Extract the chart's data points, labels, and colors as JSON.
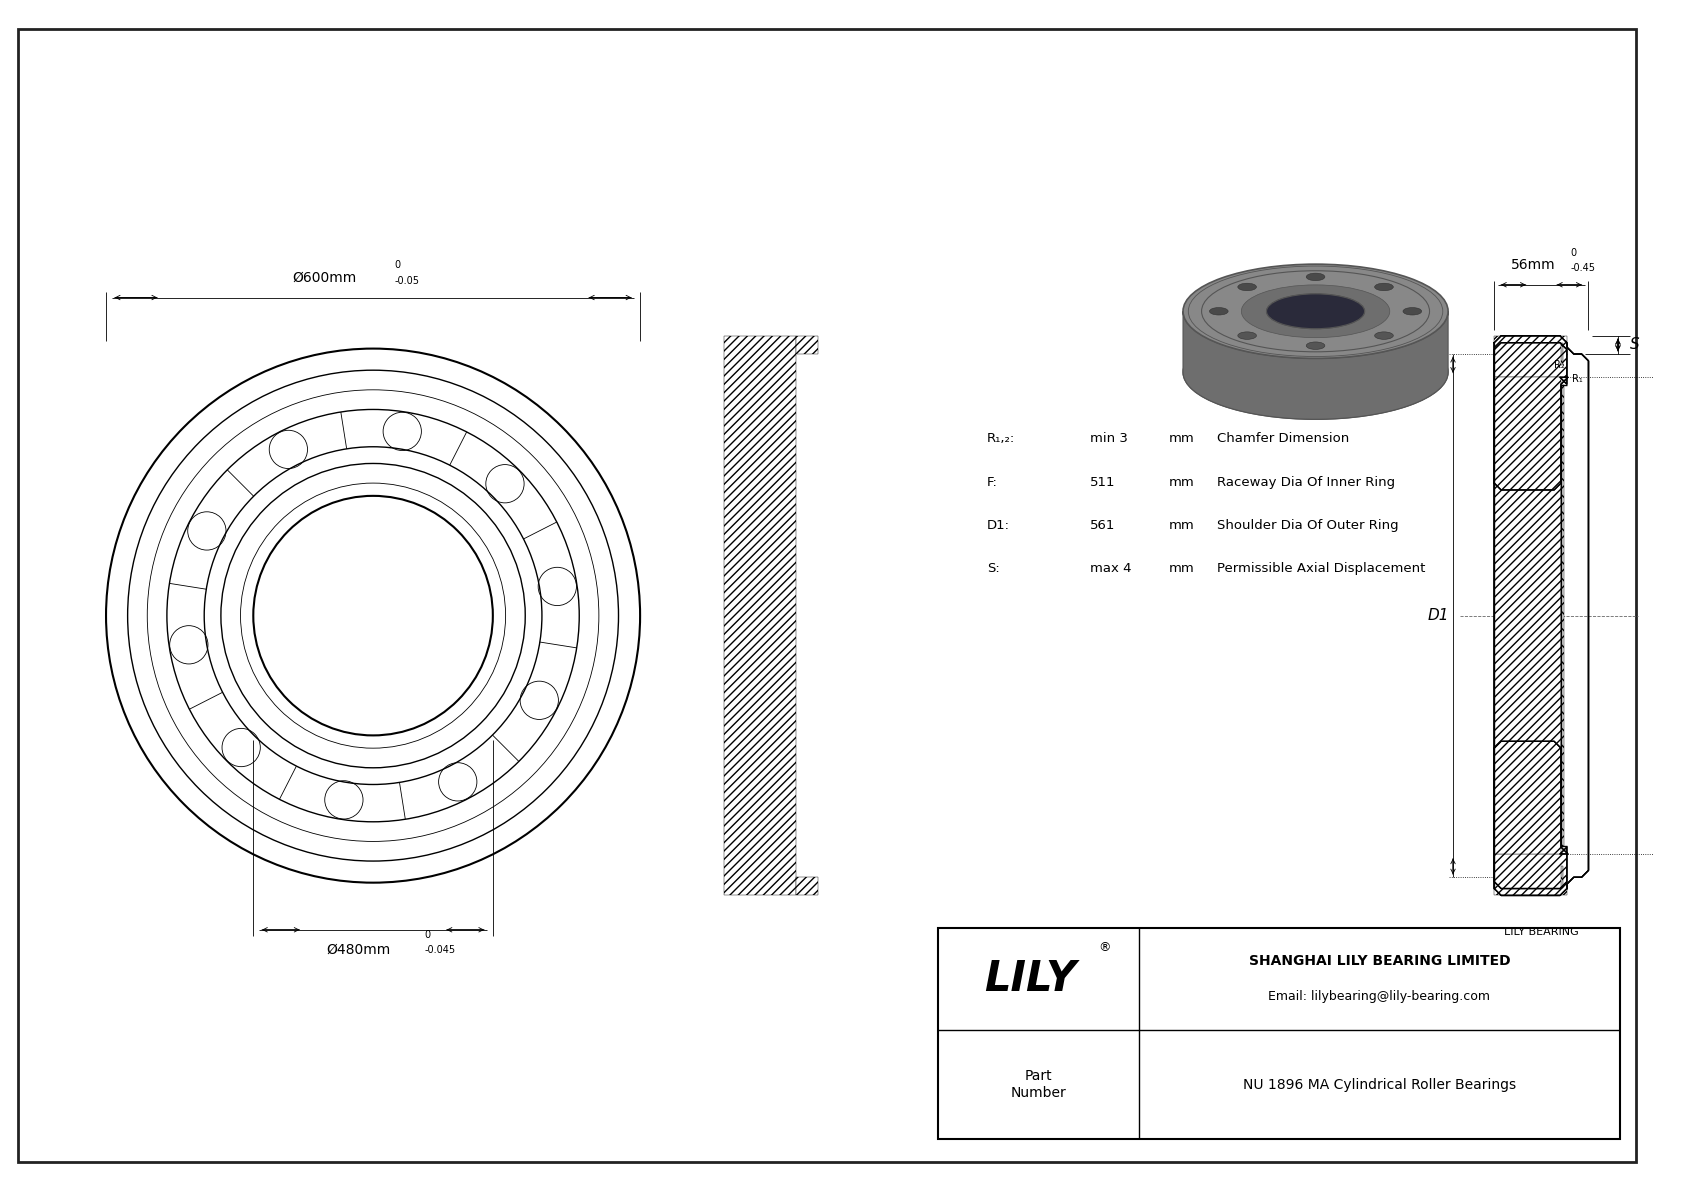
{
  "bg_color": "#ffffff",
  "line_color": "#000000",
  "outer_diameter_label": "Ø600mm",
  "outer_diameter_tol_sup": "0",
  "outer_diameter_tol_sub": "-0.05",
  "inner_diameter_label": "Ø480mm",
  "inner_diameter_tol_sup": "0",
  "inner_diameter_tol_sub": "-0.045",
  "width_label": "56mm",
  "width_tol_sup": "0",
  "width_tol_sub": "-0.45",
  "params": [
    {
      "sym": "R₁,₂:",
      "val": "min 3",
      "unit": "mm",
      "desc": "Chamfer Dimension"
    },
    {
      "sym": "F:",
      "val": "511",
      "unit": "mm",
      "desc": "Raceway Dia Of Inner Ring"
    },
    {
      "sym": "D1:",
      "val": "561",
      "unit": "mm",
      "desc": "Shoulder Dia Of Outer Ring"
    },
    {
      "sym": "S:",
      "val": "max 4",
      "unit": "mm",
      "desc": "Permissible Axial Displacement"
    }
  ],
  "company": "SHANGHAI LILY BEARING LIMITED",
  "email": "Email: lilybearing@lily-bearing.com",
  "part_label": "Part\nNumber",
  "part_number": "NU 1896 MA Cylindrical Roller Bearings",
  "lily_label": "LILY",
  "registered": "®",
  "watermark": "LILY BEARING",
  "gray_dark": "#555555",
  "gray_mid": "#6e6e6e",
  "gray_light": "#888888",
  "gray_lighter": "#aaaaaa",
  "gray_face": "#7a7a7a"
}
